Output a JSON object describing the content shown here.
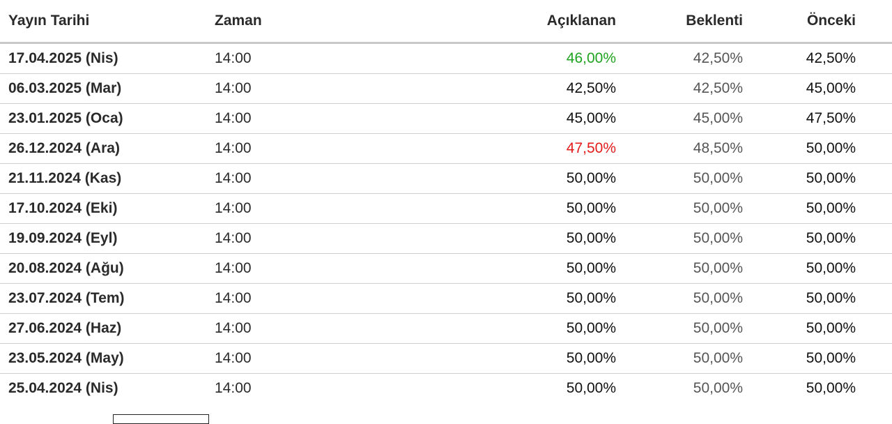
{
  "headers": {
    "date": "Yayın Tarihi",
    "time": "Zaman",
    "actual": "Açıklanan",
    "forecast": "Beklenti",
    "previous": "Önceki"
  },
  "rows": [
    {
      "date": "17.04.2025 (Nis)",
      "time": "14:00",
      "actual": "46,00%",
      "forecast": "42,50%",
      "previous": "42,50%",
      "actual_status": "up"
    },
    {
      "date": "06.03.2025 (Mar)",
      "time": "14:00",
      "actual": "42,50%",
      "forecast": "42,50%",
      "previous": "45,00%",
      "actual_status": "neutral"
    },
    {
      "date": "23.01.2025 (Oca)",
      "time": "14:00",
      "actual": "45,00%",
      "forecast": "45,00%",
      "previous": "47,50%",
      "actual_status": "neutral"
    },
    {
      "date": "26.12.2024 (Ara)",
      "time": "14:00",
      "actual": "47,50%",
      "forecast": "48,50%",
      "previous": "50,00%",
      "actual_status": "down"
    },
    {
      "date": "21.11.2024 (Kas)",
      "time": "14:00",
      "actual": "50,00%",
      "forecast": "50,00%",
      "previous": "50,00%",
      "actual_status": "neutral"
    },
    {
      "date": "17.10.2024 (Eki)",
      "time": "14:00",
      "actual": "50,00%",
      "forecast": "50,00%",
      "previous": "50,00%",
      "actual_status": "neutral"
    },
    {
      "date": "19.09.2024 (Eyl)",
      "time": "14:00",
      "actual": "50,00%",
      "forecast": "50,00%",
      "previous": "50,00%",
      "actual_status": "neutral"
    },
    {
      "date": "20.08.2024 (Ağu)",
      "time": "14:00",
      "actual": "50,00%",
      "forecast": "50,00%",
      "previous": "50,00%",
      "actual_status": "neutral"
    },
    {
      "date": "23.07.2024 (Tem)",
      "time": "14:00",
      "actual": "50,00%",
      "forecast": "50,00%",
      "previous": "50,00%",
      "actual_status": "neutral"
    },
    {
      "date": "27.06.2024 (Haz)",
      "time": "14:00",
      "actual": "50,00%",
      "forecast": "50,00%",
      "previous": "50,00%",
      "actual_status": "neutral"
    },
    {
      "date": "23.05.2024 (May)",
      "time": "14:00",
      "actual": "50,00%",
      "forecast": "50,00%",
      "previous": "50,00%",
      "actual_status": "neutral"
    },
    {
      "date": "25.04.2024 (Nis)",
      "time": "14:00",
      "actual": "50,00%",
      "forecast": "50,00%",
      "previous": "50,00%",
      "actual_status": "neutral"
    }
  ],
  "colors": {
    "up": "#1fa31f",
    "down": "#e31b1b",
    "header_rule": "#c8c8c8",
    "row_rule": "#cfcfcf"
  }
}
